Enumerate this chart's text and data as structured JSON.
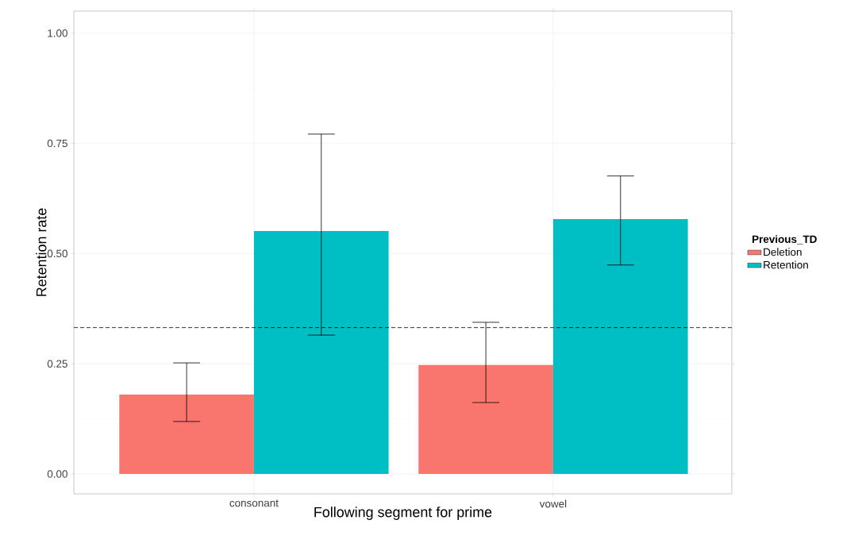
{
  "chart_data": {
    "type": "bar",
    "xlabel": "Following segment for prime",
    "ylabel": "Retention rate",
    "legend_title": "Previous_TD",
    "categories": [
      "consonant",
      "vowel"
    ],
    "series": [
      {
        "name": "Deletion",
        "color": "#f8766d",
        "values": [
          0.18,
          0.247
        ],
        "errors": [
          [
            0.119,
            0.252
          ],
          [
            0.162,
            0.344
          ]
        ]
      },
      {
        "name": "Retention",
        "color": "#00bfc4",
        "values": [
          0.551,
          0.578
        ],
        "errors": [
          [
            0.315,
            0.771
          ],
          [
            0.474,
            0.676
          ]
        ]
      }
    ],
    "ylim": [
      -0.045,
      1.05
    ],
    "yticks": [
      {
        "value": 0,
        "label": "0.00"
      },
      {
        "value": 0.25,
        "label": "0.25"
      },
      {
        "value": 0.5,
        "label": "0.50"
      },
      {
        "value": 0.75,
        "label": "0.75"
      },
      {
        "value": 1,
        "label": "1.00"
      }
    ],
    "ref_lines": [
      {
        "axis": "y",
        "value": 0.332,
        "line_style": "dashed"
      }
    ],
    "grid": true,
    "legend": "right"
  }
}
